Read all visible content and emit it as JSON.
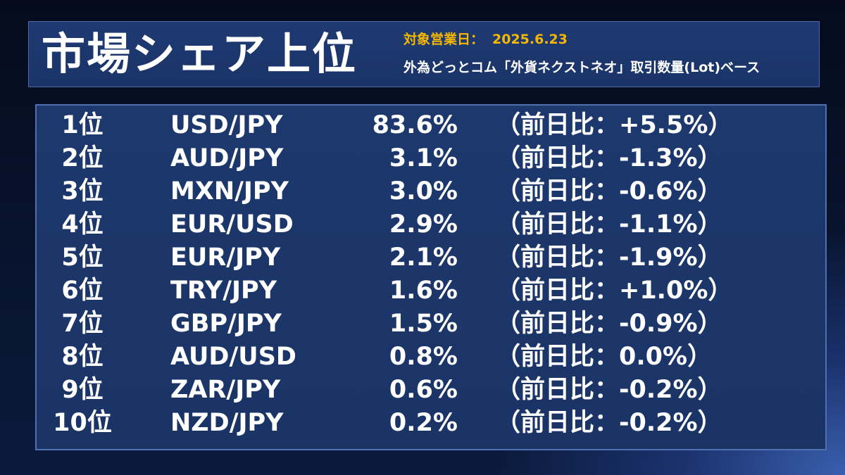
{
  "header": {
    "title": "市場シェア上位",
    "date_label": "対象営業日：",
    "date_value": "2025.6.23",
    "subtitle": "外為どっとコム「外貨ネクストネオ」取引数量(Lot)ベース"
  },
  "ranking": [
    {
      "rank": "1位",
      "pair": "USD/JPY",
      "share": "83.6%",
      "change": "（前日比：+5.5%）"
    },
    {
      "rank": "2位",
      "pair": "AUD/JPY",
      "share": "3.1%",
      "change": "（前日比：-1.3%）"
    },
    {
      "rank": "3位",
      "pair": "MXN/JPY",
      "share": "3.0%",
      "change": "（前日比：-0.6%）"
    },
    {
      "rank": "4位",
      "pair": "EUR/USD",
      "share": "2.9%",
      "change": "（前日比：-1.1%）"
    },
    {
      "rank": "5位",
      "pair": "EUR/JPY",
      "share": "2.1%",
      "change": "（前日比：-1.9%）"
    },
    {
      "rank": "6位",
      "pair": "TRY/JPY",
      "share": "1.6%",
      "change": "（前日比：+1.0%）"
    },
    {
      "rank": "7位",
      "pair": "GBP/JPY",
      "share": "1.5%",
      "change": "（前日比：-0.9%）"
    },
    {
      "rank": "8位",
      "pair": "AUD/USD",
      "share": "0.8%",
      "change": "（前日比：0.0%）"
    },
    {
      "rank": "9位",
      "pair": "ZAR/JPY",
      "share": "0.6%",
      "change": "（前日比：-0.2%）"
    },
    {
      "rank": "10位",
      "pair": "NZD/JPY",
      "share": "0.2%",
      "change": "（前日比：-0.2%）"
    }
  ],
  "colors": {
    "accent": "#f5b700",
    "panel": "#1d386d",
    "text": "#ffffff"
  }
}
